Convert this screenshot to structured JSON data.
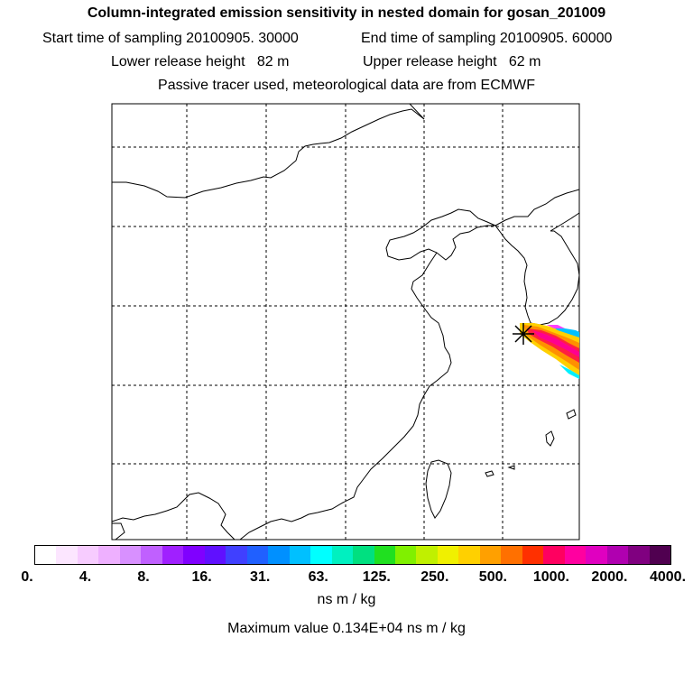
{
  "header": {
    "title": "Column-integrated emission sensitivity in nested domain for gosan_201009",
    "start_label": "Start time of sampling 20100905. 30000",
    "end_label": "End time of sampling 20100905. 60000",
    "lower_label": "Lower release height   82 m",
    "upper_label": "Upper release height   62 m",
    "info": "Passive tracer used, meteorological data are from ECMWF"
  },
  "map": {
    "region": "East Asia nested domain",
    "release_site": "Gosan",
    "plume_colors": [
      "#ffd000",
      "#ff9000",
      "#ff2040",
      "#ff0090",
      "#ff40ff",
      "#00f0ff",
      "#0090ff",
      "#80f000"
    ]
  },
  "colorbar": {
    "colors": [
      "#ffffff",
      "#fce6ff",
      "#f7ccff",
      "#eeb0ff",
      "#d890ff",
      "#c060ff",
      "#a020ff",
      "#8000ff",
      "#6010ff",
      "#4040ff",
      "#2060ff",
      "#0090ff",
      "#00c0ff",
      "#00ffff",
      "#00f0c0",
      "#00e080",
      "#20e020",
      "#80f000",
      "#c0f000",
      "#f0f000",
      "#ffd000",
      "#ffa000",
      "#ff7000",
      "#ff3000",
      "#ff0060",
      "#ff00a0",
      "#e000c0",
      "#b000b0",
      "#800080",
      "#500050"
    ],
    "tick_labels": [
      "0.",
      "4.",
      "8.",
      "16.",
      "31.",
      "63.",
      "125.",
      "250.",
      "500.",
      "1000.",
      "2000.",
      "4000."
    ],
    "units": "ns m / kg",
    "max_value_label": "Maximum value  0.134E+04 ns m / kg"
  }
}
